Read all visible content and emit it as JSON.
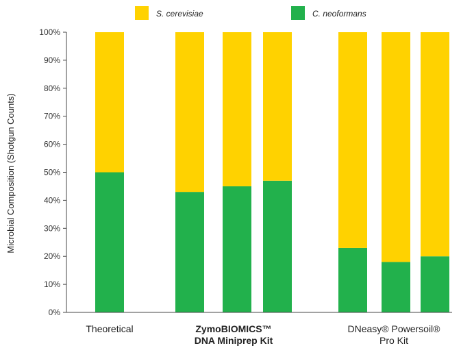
{
  "chart_data": {
    "type": "bar",
    "stacked": true,
    "ylabel": "Microbial Composition (Shotgun Counts)",
    "yticks": [
      "0%",
      "10%",
      "20%",
      "30%",
      "40%",
      "50%",
      "60%",
      "70%",
      "80%",
      "90%",
      "100%"
    ],
    "ylim": [
      0,
      100
    ],
    "grid": false,
    "legend_placement": "top-center",
    "colors": {
      "C. neoformans": "#22b14c",
      "S. cerevisiae": "#ffd200"
    },
    "series": [
      {
        "name": "S. cerevisiae",
        "values": [
          50,
          57,
          55,
          53,
          77,
          82,
          80
        ]
      },
      {
        "name": "C. neoformans",
        "values": [
          50,
          43,
          45,
          47,
          23,
          18,
          20
        ]
      }
    ],
    "groups": [
      {
        "label_lines": [
          "Theoretical"
        ],
        "bold": false,
        "bar_indices": [
          0
        ]
      },
      {
        "label_lines": [
          "ZymoBIOMICS™",
          "DNA Miniprep Kit"
        ],
        "bold": true,
        "bar_indices": [
          1,
          2,
          3
        ]
      },
      {
        "label_lines": [
          "DNeasy® Powersoil®",
          "Pro Kit"
        ],
        "bold": false,
        "bar_indices": [
          4,
          5,
          6
        ]
      }
    ]
  }
}
